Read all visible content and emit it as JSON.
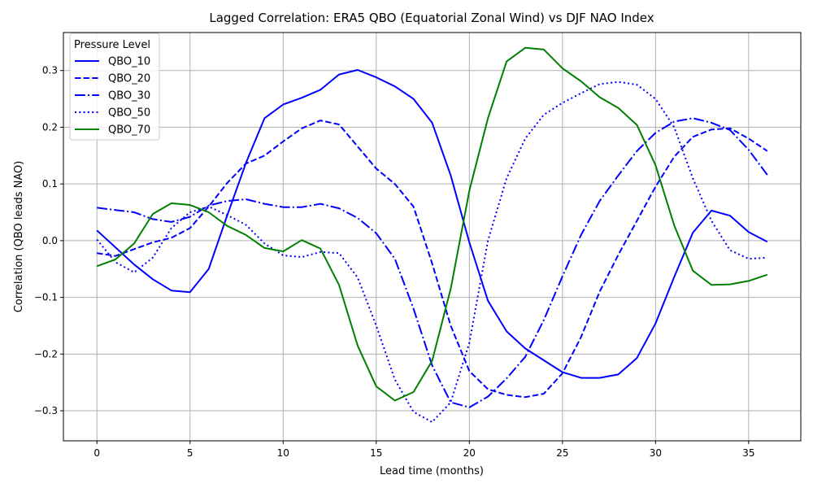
{
  "chart_data": {
    "type": "line",
    "title": "Lagged Correlation: ERA5 QBO (Equatorial Zonal Wind) vs DJF NAO Index",
    "xlabel": "Lead time (months)",
    "ylabel": "Correlation (QBO leads NAO)",
    "xlim": [
      -1.8,
      37.8
    ],
    "ylim": [
      -0.353,
      0.367
    ],
    "xticks": [
      0,
      5,
      10,
      15,
      20,
      25,
      30,
      35
    ],
    "yticks": [
      -0.3,
      -0.2,
      -0.1,
      0.0,
      0.1,
      0.2,
      0.3
    ],
    "ytick_labels": [
      "−0.3",
      "−0.2",
      "−0.1",
      "0.0",
      "0.1",
      "0.2",
      "0.3"
    ],
    "grid": true,
    "legend": {
      "title": "Pressure Level",
      "placement": "top-left"
    },
    "x": [
      0,
      1,
      2,
      3,
      4,
      5,
      6,
      7,
      8,
      9,
      10,
      11,
      12,
      13,
      14,
      15,
      16,
      17,
      18,
      19,
      20,
      21,
      22,
      23,
      24,
      25,
      26,
      27,
      28,
      29,
      30,
      31,
      32,
      33,
      34,
      35,
      36
    ],
    "series": [
      {
        "name": "QBO_10",
        "color": "#0000ff",
        "style": "solid",
        "values": [
          0.018,
          -0.012,
          -0.042,
          -0.068,
          -0.088,
          -0.091,
          -0.05,
          0.045,
          0.137,
          0.216,
          0.24,
          0.252,
          0.266,
          0.293,
          0.301,
          0.288,
          0.272,
          0.25,
          0.208,
          0.115,
          -0.003,
          -0.106,
          -0.16,
          -0.19,
          -0.211,
          -0.232,
          -0.242,
          -0.242,
          -0.236,
          -0.207,
          -0.146,
          -0.064,
          0.014,
          0.053,
          0.044,
          0.015,
          -0.002
        ]
      },
      {
        "name": "QBO_20",
        "color": "#0000ff",
        "style": "dashed",
        "values": [
          -0.022,
          -0.027,
          -0.015,
          -0.003,
          0.005,
          0.022,
          0.06,
          0.102,
          0.136,
          0.15,
          0.175,
          0.198,
          0.212,
          0.205,
          0.166,
          0.127,
          0.1,
          0.06,
          -0.04,
          -0.15,
          -0.23,
          -0.262,
          -0.272,
          -0.276,
          -0.27,
          -0.234,
          -0.17,
          -0.09,
          -0.025,
          0.035,
          0.095,
          0.148,
          0.183,
          0.196,
          0.198,
          0.18,
          0.158
        ]
      },
      {
        "name": "QBO_30",
        "color": "#0000ff",
        "style": "dashdot",
        "values": [
          0.058,
          0.054,
          0.05,
          0.038,
          0.033,
          0.042,
          0.062,
          0.07,
          0.073,
          0.065,
          0.059,
          0.059,
          0.065,
          0.057,
          0.04,
          0.013,
          -0.032,
          -0.12,
          -0.22,
          -0.285,
          -0.294,
          -0.275,
          -0.243,
          -0.205,
          -0.14,
          -0.063,
          0.01,
          0.07,
          0.115,
          0.158,
          0.19,
          0.21,
          0.216,
          0.208,
          0.195,
          0.16,
          0.116
        ]
      },
      {
        "name": "QBO_50",
        "color": "#0000ff",
        "style": "dotted",
        "values": [
          0.002,
          -0.038,
          -0.056,
          -0.03,
          0.022,
          0.05,
          0.06,
          0.045,
          0.028,
          -0.005,
          -0.026,
          -0.029,
          -0.02,
          -0.022,
          -0.065,
          -0.15,
          -0.245,
          -0.302,
          -0.32,
          -0.285,
          -0.18,
          0.0,
          0.11,
          0.18,
          0.222,
          0.243,
          0.26,
          0.276,
          0.28,
          0.275,
          0.25,
          0.2,
          0.11,
          0.035,
          -0.017,
          -0.032,
          -0.03
        ]
      },
      {
        "name": "QBO_70",
        "color": "#008000",
        "style": "solid",
        "values": [
          -0.045,
          -0.033,
          -0.005,
          0.047,
          0.066,
          0.063,
          0.05,
          0.026,
          0.01,
          -0.013,
          -0.019,
          0.001,
          -0.014,
          -0.078,
          -0.185,
          -0.257,
          -0.282,
          -0.267,
          -0.212,
          -0.085,
          0.088,
          0.216,
          0.316,
          0.34,
          0.337,
          0.304,
          0.281,
          0.253,
          0.234,
          0.204,
          0.133,
          0.027,
          -0.053,
          -0.078,
          -0.077,
          -0.071,
          -0.06
        ]
      }
    ]
  }
}
